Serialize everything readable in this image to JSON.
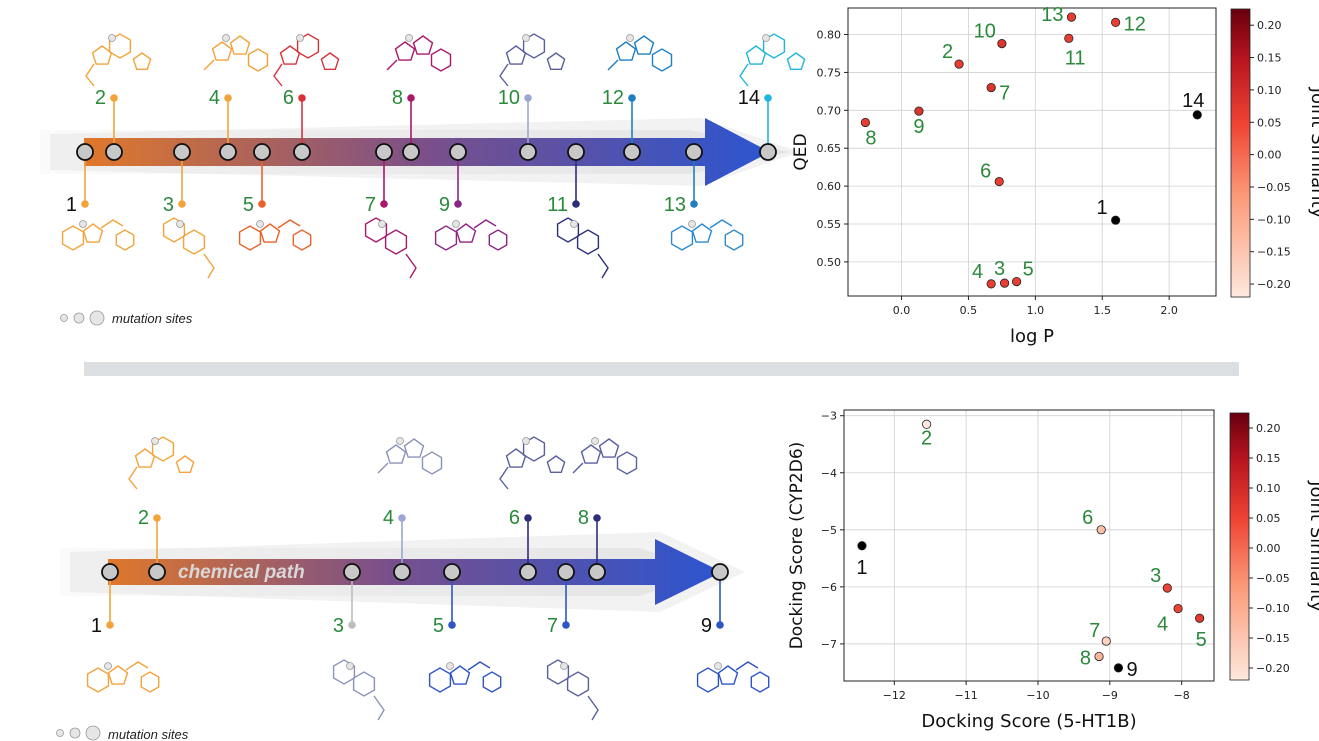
{
  "panels": [
    {
      "mutation_legend": "mutation sites",
      "path_label": "",
      "path_nodes": [
        {
          "label": "1",
          "above": false,
          "color": "#f2a33a",
          "molecule_color": "#f2a33a"
        },
        {
          "label": "2",
          "above": true,
          "color": "#f2a33a",
          "molecule_color": "#f2a33a"
        },
        {
          "label": "3",
          "above": false,
          "color": "#f2a33a",
          "molecule_color": "#f2a33a"
        },
        {
          "label": "4",
          "above": true,
          "color": "#f2a33a",
          "molecule_color": "#f2a33a"
        },
        {
          "label": "5",
          "above": false,
          "color": "#e8622a",
          "molecule_color": "#e8622a"
        },
        {
          "label": "6",
          "above": true,
          "color": "#d8333a",
          "molecule_color": "#d8333a"
        },
        {
          "label": "7",
          "above": false,
          "color": "#a8186b",
          "molecule_color": "#a8186b"
        },
        {
          "label": "8",
          "above": true,
          "color": "#a8186b",
          "molecule_color": "#a8186b"
        },
        {
          "label": "9",
          "above": false,
          "color": "#8b2585",
          "molecule_color": "#8b2585"
        },
        {
          "label": "10",
          "above": true,
          "color": "#9aa7d0",
          "molecule_color": "#5a5f9e"
        },
        {
          "label": "11",
          "above": false,
          "color": "#2c2e7a",
          "molecule_color": "#2c2e7a"
        },
        {
          "label": "12",
          "above": true,
          "color": "#1f7fbf",
          "molecule_color": "#1f7fbf"
        },
        {
          "label": "13",
          "above": false,
          "color": "#1f7fbf",
          "molecule_color": "#2a8ad0"
        },
        {
          "label": "14",
          "above": true,
          "color": "#1fb5df",
          "molecule_color": "#1fb5df"
        }
      ]
    },
    {
      "mutation_legend": "mutation sites",
      "path_label": "chemical path",
      "path_nodes": [
        {
          "label": "1",
          "above": false,
          "color": "#f2a33a",
          "molecule_color": "#f2a33a"
        },
        {
          "label": "2",
          "above": true,
          "color": "#f2a33a",
          "molecule_color": "#f2a33a"
        },
        {
          "label": "3",
          "above": false,
          "color": "#bdbdbd",
          "molecule_color": "#8c93b8"
        },
        {
          "label": "4",
          "above": true,
          "color": "#9aa7d0",
          "molecule_color": "#8c93b8"
        },
        {
          "label": "5",
          "above": false,
          "color": "#2e55c2",
          "molecule_color": "#2e55c2"
        },
        {
          "label": "6",
          "above": true,
          "color": "#2c2e7a",
          "molecule_color": "#5a5f9e"
        },
        {
          "label": "7",
          "above": false,
          "color": "#2e55c2",
          "molecule_color": "#5a5f9e"
        },
        {
          "label": "8",
          "above": true,
          "color": "#2c2e7a",
          "molecule_color": "#5a5f9e"
        },
        {
          "label": "9",
          "above": false,
          "color": "#2e55c2",
          "molecule_color": "#2e55c2"
        }
      ]
    }
  ],
  "colors": {
    "label_green": "#2a8a3a",
    "arrow_start": "#e0782a",
    "arrow_mid": "#7a4f8a",
    "arrow_end": "#2b55d0",
    "colorbar_low": "#fde8dd",
    "colorbar_high": "#67000d"
  },
  "chart_data": [
    {
      "type": "scatter",
      "xlabel": "log P",
      "ylabel": "QED",
      "xlim": [
        -0.4,
        2.35
      ],
      "ylim": [
        0.455,
        0.835
      ],
      "xticks": [
        "0.0",
        "0.5",
        "1.0",
        "1.5",
        "2.0"
      ],
      "yticks": [
        "0.50",
        "0.55",
        "0.60",
        "0.65",
        "0.70",
        "0.75",
        "0.80"
      ],
      "grid": true,
      "colorbar_label": "Joint Similarity",
      "colorbar_ticks": [
        "0.20",
        "0.15",
        "0.10",
        "0.05",
        "0.00",
        "−0.05",
        "−0.10",
        "−0.15",
        "−0.20"
      ],
      "colorbar_range": [
        -0.22,
        0.225
      ],
      "points": [
        {
          "label": "1",
          "x": 1.6,
          "y": 0.555,
          "sim": null,
          "label_color": "black"
        },
        {
          "label": "2",
          "x": 0.43,
          "y": 0.761,
          "sim": 0.06
        },
        {
          "label": "3",
          "x": 0.77,
          "y": 0.472,
          "sim": 0.06
        },
        {
          "label": "4",
          "x": 0.67,
          "y": 0.471,
          "sim": 0.06
        },
        {
          "label": "5",
          "x": 0.86,
          "y": 0.474,
          "sim": 0.06
        },
        {
          "label": "6",
          "x": 0.73,
          "y": 0.606,
          "sim": 0.06
        },
        {
          "label": "7",
          "x": 0.67,
          "y": 0.73,
          "sim": 0.08
        },
        {
          "label": "8",
          "x": -0.27,
          "y": 0.684,
          "sim": 0.06
        },
        {
          "label": "9",
          "x": 0.13,
          "y": 0.699,
          "sim": 0.08
        },
        {
          "label": "10",
          "x": 0.75,
          "y": 0.788,
          "sim": 0.08
        },
        {
          "label": "11",
          "x": 1.25,
          "y": 0.795,
          "sim": 0.06
        },
        {
          "label": "12",
          "x": 1.6,
          "y": 0.816,
          "sim": 0.06
        },
        {
          "label": "13",
          "x": 1.27,
          "y": 0.823,
          "sim": 0.06
        },
        {
          "label": "14",
          "x": 2.21,
          "y": 0.694,
          "sim": null,
          "label_color": "black"
        }
      ]
    },
    {
      "type": "scatter",
      "xlabel": "Docking Score (5-HT1B)",
      "ylabel": "Docking Score (CYP2D6)",
      "xlim": [
        -12.7,
        -7.55
      ],
      "ylim": [
        -7.65,
        -2.9
      ],
      "xticks": [
        "−12",
        "−11",
        "−10",
        "−9",
        "−8"
      ],
      "yticks": [
        "−3",
        "−4",
        "−5",
        "−6",
        "−7"
      ],
      "grid": true,
      "colorbar_label": "Joint Similarity",
      "colorbar_ticks": [
        "0.20",
        "0.15",
        "0.10",
        "0.05",
        "0.00",
        "−0.05",
        "−0.10",
        "−0.15",
        "−0.20"
      ],
      "colorbar_range": [
        -0.22,
        0.225
      ],
      "points": [
        {
          "label": "1",
          "x": -12.45,
          "y": -5.28,
          "sim": null,
          "label_color": "black"
        },
        {
          "label": "2",
          "x": -11.55,
          "y": -3.15,
          "sim": -0.22
        },
        {
          "label": "3",
          "x": -8.2,
          "y": -6.02,
          "sim": 0.05
        },
        {
          "label": "4",
          "x": -8.05,
          "y": -6.38,
          "sim": 0.05
        },
        {
          "label": "5",
          "x": -7.75,
          "y": -6.55,
          "sim": 0.07
        },
        {
          "label": "6",
          "x": -9.12,
          "y": -5.0,
          "sim": -0.14
        },
        {
          "label": "7",
          "x": -9.05,
          "y": -6.95,
          "sim": -0.18
        },
        {
          "label": "8",
          "x": -9.15,
          "y": -7.22,
          "sim": -0.12
        },
        {
          "label": "9",
          "x": -8.88,
          "y": -7.42,
          "sim": null,
          "label_color": "black"
        }
      ]
    }
  ]
}
